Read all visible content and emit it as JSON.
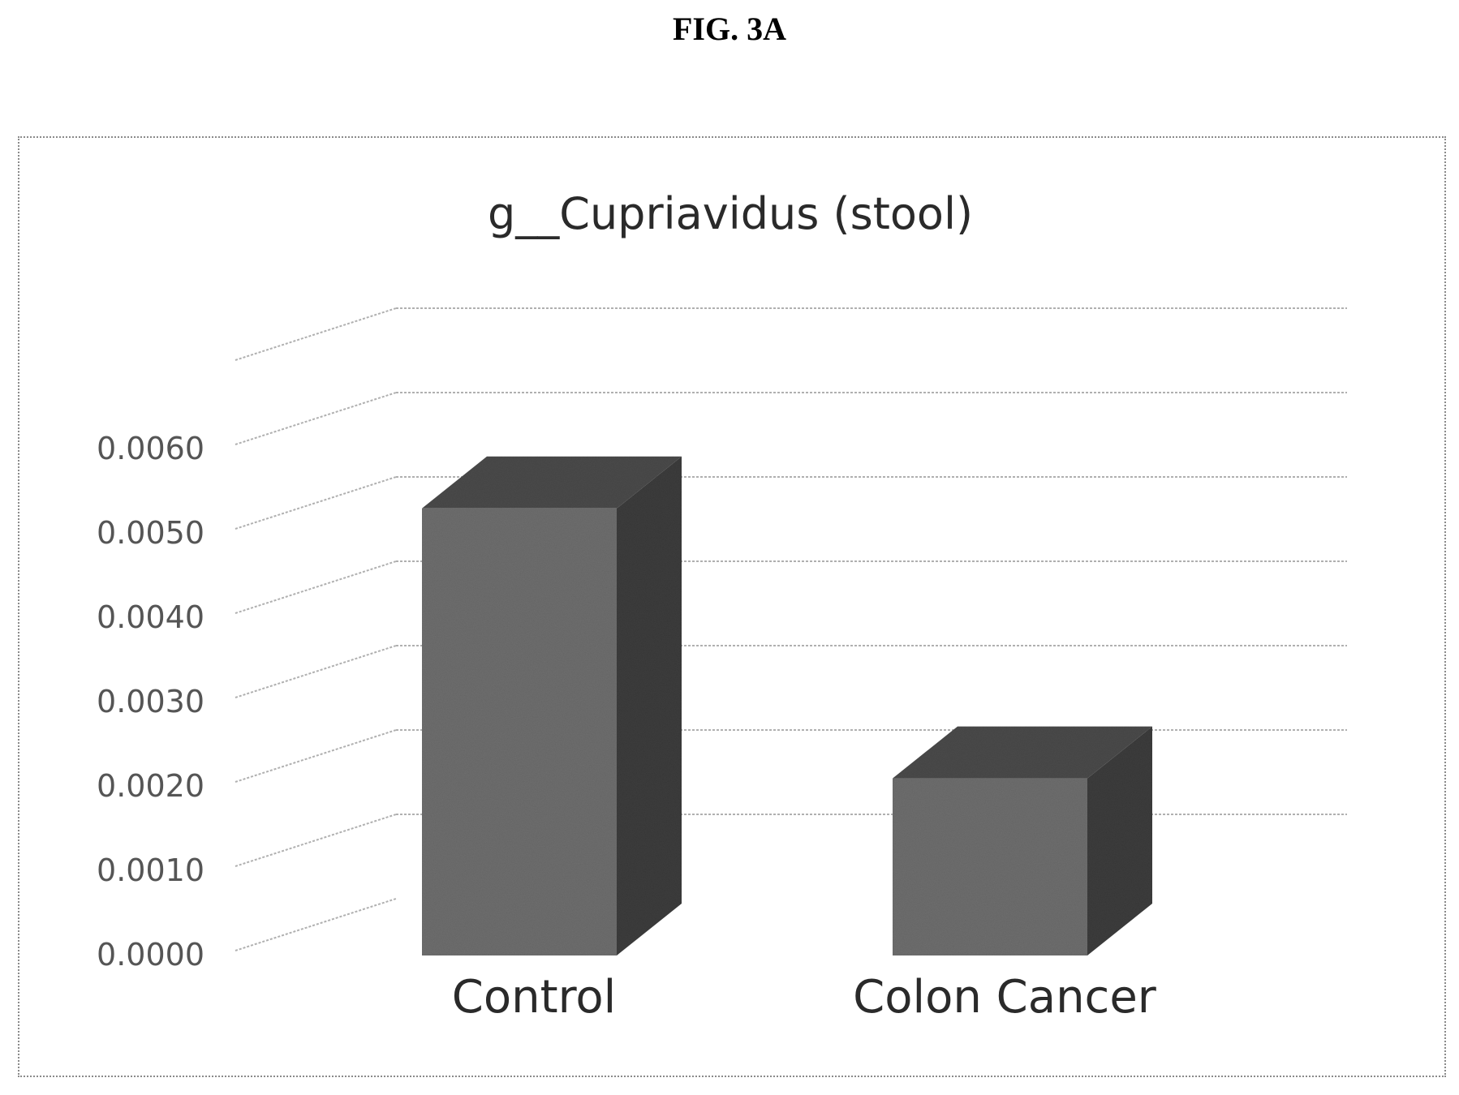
{
  "figure_label": "FIG. 3A",
  "chart_data": {
    "type": "bar",
    "title": "g__Cupriavidus (stool)",
    "categories": [
      "Control",
      "Colon Cancer"
    ],
    "values": [
      0.0053,
      0.0021
    ],
    "ylim": [
      0,
      0.006
    ],
    "yticks": [
      "0.0000",
      "0.0010",
      "0.0020",
      "0.0030",
      "0.0040",
      "0.0050",
      "0.0060"
    ],
    "xlabel": "",
    "ylabel": "",
    "style": "3d",
    "grid": true,
    "legend": "none",
    "colors": {
      "front": "#6e6e6e",
      "side": "#3c3c3c",
      "top": "#4a4a4a",
      "grid": "#b0b0b0"
    }
  }
}
